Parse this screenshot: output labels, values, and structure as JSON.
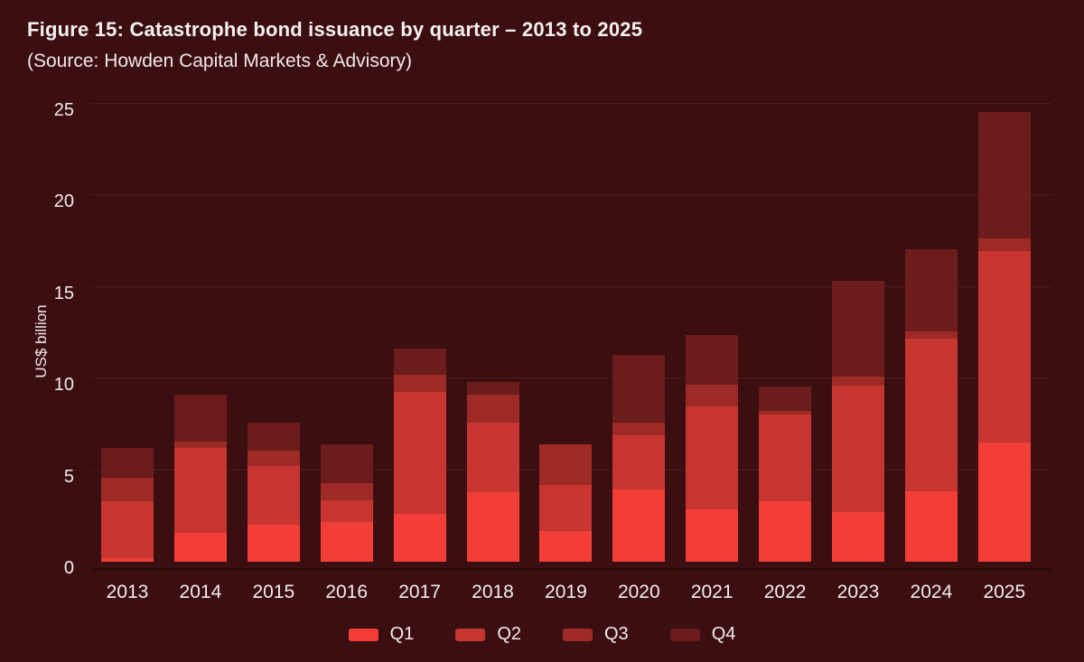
{
  "header": {
    "title": "Figure 15: Catastrophe bond issuance by quarter – 2013 to 2025",
    "subtitle": "(Source: Howden Capital Markets & Advisory)"
  },
  "chart_data": {
    "type": "bar",
    "stacked": true,
    "title": "Figure 15: Catastrophe bond issuance by quarter – 2013 to 2025",
    "subtitle": "(Source: Howden Capital Markets & Advisory)",
    "xlabel": "",
    "ylabel": "US$ billion",
    "ylim": [
      0,
      25
    ],
    "yticks": [
      0,
      5,
      10,
      15,
      20,
      25
    ],
    "grid": true,
    "legend_position": "bottom",
    "categories": [
      "2013",
      "2014",
      "2015",
      "2016",
      "2017",
      "2018",
      "2019",
      "2020",
      "2021",
      "2022",
      "2023",
      "2024",
      "2025"
    ],
    "series": [
      {
        "name": "Q1",
        "color": "#F23E37",
        "values": [
          0.2,
          1.6,
          2.0,
          2.15,
          2.6,
          3.8,
          1.7,
          3.95,
          2.85,
          3.3,
          2.7,
          3.85,
          6.5
        ]
      },
      {
        "name": "Q2",
        "color": "#C63530",
        "values": [
          3.1,
          4.6,
          3.25,
          1.2,
          6.65,
          3.8,
          2.5,
          2.95,
          5.65,
          4.75,
          6.9,
          8.35,
          10.45
        ]
      },
      {
        "name": "Q3",
        "color": "#9E2A25",
        "values": [
          1.3,
          0.35,
          0.8,
          0.95,
          0.95,
          1.5,
          2.2,
          0.7,
          1.15,
          0.2,
          0.5,
          0.4,
          0.7
        ]
      },
      {
        "name": "Q4",
        "color": "#6C1C1B",
        "values": [
          1.6,
          2.55,
          1.55,
          2.1,
          1.45,
          0.7,
          0.0,
          3.7,
          2.75,
          1.3,
          5.25,
          4.45,
          6.9
        ]
      }
    ],
    "totals": [
      6.2,
      9.1,
      7.6,
      6.4,
      11.65,
      9.8,
      6.4,
      11.3,
      12.4,
      9.55,
      15.35,
      17.05,
      24.55
    ]
  },
  "colors": {
    "background": "#3B0F12",
    "gridline": "#4D1B1A",
    "text": "#F2EBEA",
    "q1": "#F23E37",
    "q2": "#C63530",
    "q3": "#9E2A25",
    "q4": "#6C1C1B"
  }
}
